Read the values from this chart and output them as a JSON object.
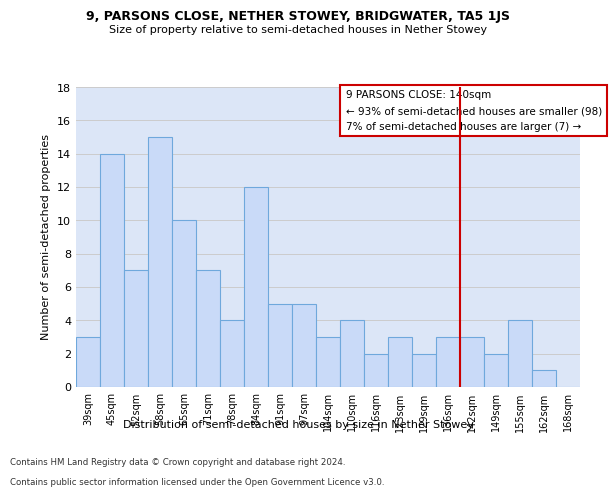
{
  "title": "9, PARSONS CLOSE, NETHER STOWEY, BRIDGWATER, TA5 1JS",
  "subtitle": "Size of property relative to semi-detached houses in Nether Stowey",
  "xlabel": "Distribution of semi-detached houses by size in Nether Stowey",
  "ylabel": "Number of semi-detached properties",
  "footer_line1": "Contains HM Land Registry data © Crown copyright and database right 2024.",
  "footer_line2": "Contains public sector information licensed under the Open Government Licence v3.0.",
  "categories": [
    "39sqm",
    "45sqm",
    "52sqm",
    "58sqm",
    "65sqm",
    "71sqm",
    "78sqm",
    "84sqm",
    "91sqm",
    "97sqm",
    "104sqm",
    "110sqm",
    "116sqm",
    "123sqm",
    "129sqm",
    "136sqm",
    "142sqm",
    "149sqm",
    "155sqm",
    "162sqm",
    "168sqm"
  ],
  "values": [
    3,
    14,
    7,
    15,
    10,
    7,
    4,
    12,
    5,
    5,
    3,
    4,
    2,
    3,
    2,
    3,
    3,
    2,
    4,
    1,
    0
  ],
  "bar_color": "#c9daf8",
  "bar_edge_color": "#6fa8dc",
  "highlight_label": "9 PARSONS CLOSE: 140sqm",
  "annotation_smaller": "← 93% of semi-detached houses are smaller (98)",
  "annotation_larger": "7% of semi-detached houses are larger (7) →",
  "annotation_box_color": "#ffffff",
  "annotation_box_edge": "#cc0000",
  "vline_color": "#cc0000",
  "ylim": [
    0,
    18
  ],
  "yticks": [
    0,
    2,
    4,
    6,
    8,
    10,
    12,
    14,
    16,
    18
  ],
  "grid_color": "#cccccc",
  "bg_color": "#dce6f7"
}
